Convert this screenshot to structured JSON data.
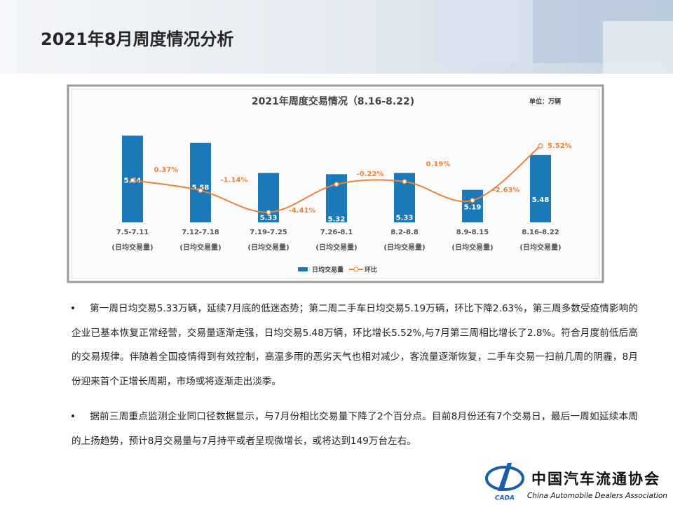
{
  "header": {
    "title": "2021年8月周度情况分析"
  },
  "chart_data": {
    "type": "bar",
    "title": "2021年周度交易情况（8.16-8.22)",
    "unit": "单位：万辆",
    "categories": [
      [
        "7.5-7.11",
        "(日均交易量)"
      ],
      [
        "7.12-7.18",
        "(日均交易量)"
      ],
      [
        "7.19-7.25",
        "(日均交易量)"
      ],
      [
        "7.26-8.1",
        "(日均交易量)"
      ],
      [
        "8.2-8.8",
        "(日均交易量)"
      ],
      [
        "8.9-8.15",
        "(日均交易量)"
      ],
      [
        "8.16-8.22",
        "(日均交易量)"
      ]
    ],
    "series": [
      {
        "name": "日均交易量",
        "type": "bar",
        "color": "#1a7ab8",
        "values": [
          5.64,
          5.58,
          5.33,
          5.32,
          5.33,
          5.19,
          5.48
        ]
      },
      {
        "name": "环比",
        "type": "line",
        "axis": "y2",
        "color": "#e8833a",
        "values": [
          0.37,
          -1.14,
          -4.41,
          -0.22,
          0.19,
          -2.63,
          5.52
        ],
        "value_labels": [
          "0.37%",
          "-1.14%",
          "-4.41%",
          "-0.22%",
          "0.19%",
          "-2.63%",
          "5.52%"
        ]
      }
    ],
    "ylim": [
      4.92,
      5.66
    ],
    "y2lim": [
      -5.9,
      7.4
    ],
    "legend": "bottom"
  },
  "bullets": [
    "第一周日均交易5.33万辆，延续7月底的低迷态势；第二周二手车日均交易5.19万辆，环比下降2.63%，第三周多数受疫情影响的企业已基本恢复正常经营，交易量逐渐走强，日均交易5.48万辆，环比增长5.52%,与7月第三周相比增长了2.8%。符合月度前低后高的交易规律。伴随着全国疫情得到有效控制，高温多雨的恶劣天气也相对减少，客流量逐渐恢复，二手车交易一扫前几周的阴霾，8月份迎来首个正增长周期，市场或将逐渐走出淡季。",
    "据前三周重点监测企业同口径数据显示，与7月份相比交易量下降了2个百分点。目前8月份还有7个交易日，最后一周如延续本周的上扬趋势，预计8月交易量与7月持平或者呈现微增长，或将达到149万台左右。"
  ],
  "logo": {
    "name": "中国汽车流通协会",
    "english": "China Automobile Dealers Association",
    "abbr": "CADA"
  }
}
